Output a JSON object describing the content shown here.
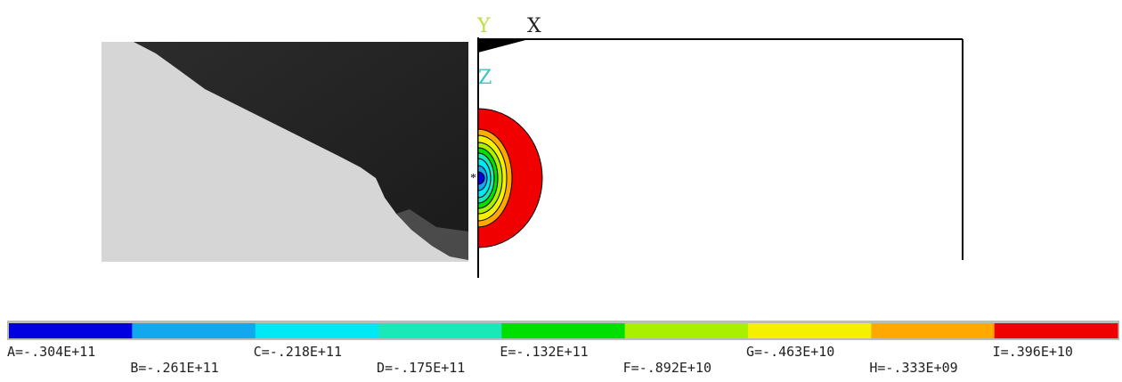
{
  "axes": {
    "y": "Y",
    "x": "X",
    "z": "Z"
  },
  "legend": [
    {
      "label": "A=-.304E+11",
      "color": "#0000e0"
    },
    {
      "label": "B=-.261E+11",
      "color": "#11a8ee"
    },
    {
      "label": "C=-.218E+11",
      "color": "#00e8f4"
    },
    {
      "label": "D=-.175E+11",
      "color": "#1ae8b8"
    },
    {
      "label": "E=-.132E+11",
      "color": "#00e000"
    },
    {
      "label": "F=-.892E+10",
      "color": "#a8f000"
    },
    {
      "label": "G=-.463E+10",
      "color": "#f4f000"
    },
    {
      "label": "H=-.333E+09",
      "color": "#ffa800"
    },
    {
      "label": "I=.396E+10",
      "color": "#f00000"
    }
  ]
}
